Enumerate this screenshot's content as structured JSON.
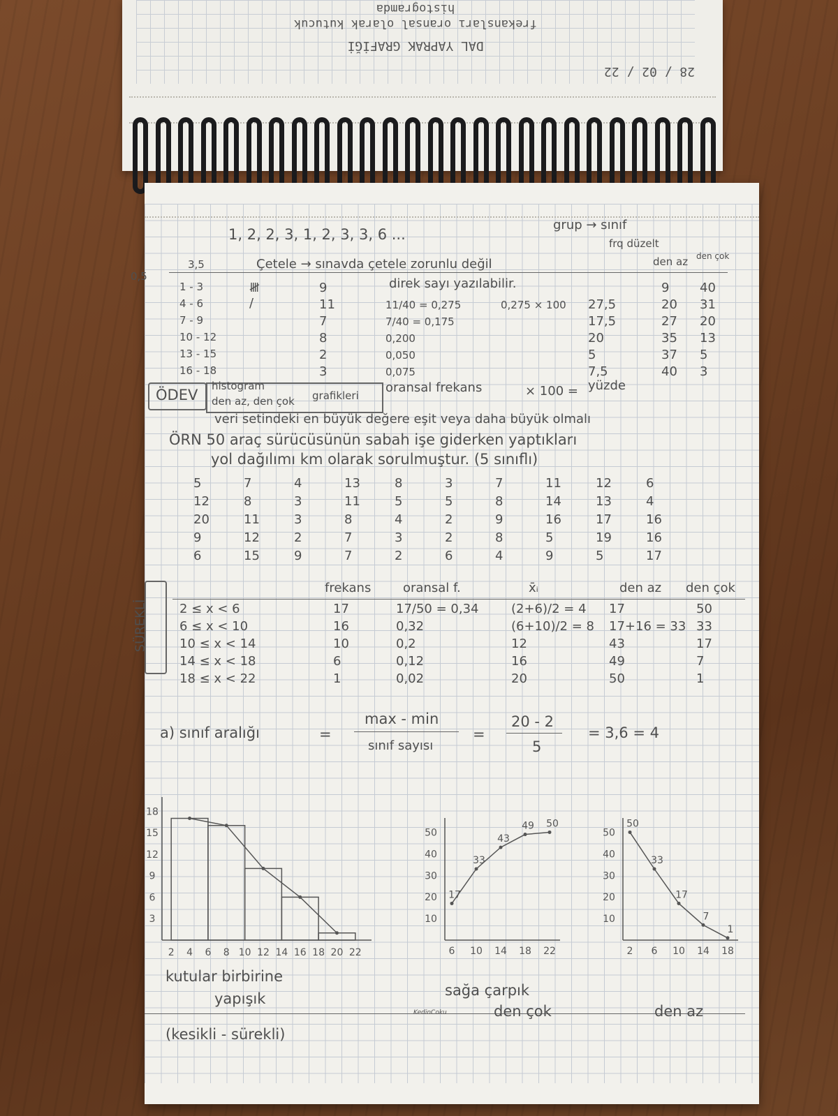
{
  "top_page": {
    "line1": "histogramda",
    "line2": "frekansları oransal olarak kutucuk",
    "line3": "DAL YAPRAK GRAFİĞİ",
    "date": "28 / 02 / 22"
  },
  "header": {
    "sequence": "1, 2, 2, 3, 1, 2, 3, 3, 6 ...",
    "group_note": "grup → sınıf",
    "freq_note": "frq düzelt",
    "lower_bound": "0,5",
    "interval_head": "3,5",
    "cetele_note": "Çetele → sınavda çetele zorunlu değil",
    "direct_note": "direk sayı yazılabilir.",
    "den_az": "den az",
    "den_cok": "den çok"
  },
  "table1": {
    "rows": [
      {
        "cls": "1 - 3",
        "tally": "𝍸",
        "freq": "9",
        "rel": "",
        "pct": "",
        "az": "9",
        "cok": "40"
      },
      {
        "cls": "4 - 6",
        "tally": "/",
        "freq": "11",
        "rel": "11/40 = 0,275",
        "extra": "0,275 × 100",
        "pct": "27,5",
        "az": "20",
        "cok": "31"
      },
      {
        "cls": "7 - 9",
        "tally": "",
        "freq": "7",
        "rel": "7/40 = 0,175",
        "pct": "17,5",
        "az": "27",
        "cok": "20"
      },
      {
        "cls": "10 - 12",
        "tally": "",
        "freq": "8",
        "rel": "0,200",
        "pct": "20",
        "az": "35",
        "cok": "13"
      },
      {
        "cls": "13 - 15",
        "tally": "",
        "freq": "2",
        "rel": "0,050",
        "pct": "5",
        "az": "37",
        "cok": "5"
      },
      {
        "cls": "16 - 18",
        "tally": "",
        "freq": "3",
        "rel": "0,075",
        "pct": "7,5",
        "az": "40",
        "cok": "3"
      }
    ]
  },
  "homework": {
    "label": "ÖDEV",
    "line1": "histogram",
    "line2": "den az, den çok",
    "line3": "grafikleri",
    "rel_freq": "oransal frekans",
    "times100": "× 100 =",
    "yuzde": "yüzde",
    "note": "veri setindeki en büyük değere eşit veya daha büyük olmalı"
  },
  "problem": {
    "line1": "ÖRN  50 araç sürücüsünün sabah işe giderken yaptıkları",
    "line2": "yol dağılımı km olarak sorulmuştur. (5 sınıflı)",
    "grid": [
      [
        "5",
        "7",
        "4",
        "13",
        "8",
        "3",
        "7",
        "11",
        "12",
        "6"
      ],
      [
        "12",
        "8",
        "3",
        "11",
        "5",
        "5",
        "8",
        "14",
        "13",
        "4"
      ],
      [
        "20",
        "11",
        "3",
        "8",
        "4",
        "2",
        "9",
        "16",
        "17",
        "16"
      ],
      [
        "9",
        "12",
        "2",
        "7",
        "3",
        "2",
        "8",
        "5",
        "19",
        "16"
      ],
      [
        "6",
        "15",
        "9",
        "7",
        "2",
        "6",
        "4",
        "9",
        "5",
        "17"
      ]
    ]
  },
  "table2": {
    "side_label": "SÜREKLİ",
    "headers": [
      "frekans",
      "oransal f.",
      "x̄ᵢ",
      "den az",
      "den çok"
    ],
    "rows": [
      {
        "cls": "2 ≤ x < 6",
        "freq": "17",
        "rel": "17/50 = 0,34",
        "mid": "(2+6)/2 = 4",
        "az": "17",
        "cok": "50"
      },
      {
        "cls": "6 ≤ x < 10",
        "freq": "16",
        "rel": "0,32",
        "mid": "(6+10)/2 = 8",
        "az": "17+16 = 33",
        "cok": "33"
      },
      {
        "cls": "10 ≤ x < 14",
        "freq": "10",
        "rel": "0,2",
        "mid": "12",
        "az": "43",
        "cok": "17"
      },
      {
        "cls": "14 ≤ x < 18",
        "freq": "6",
        "rel": "0,12",
        "mid": "16",
        "az": "49",
        "cok": "7"
      },
      {
        "cls": "18 ≤ x < 22",
        "freq": "1",
        "rel": "0,02",
        "mid": "20",
        "az": "50",
        "cok": "1"
      }
    ]
  },
  "formula": {
    "label": "a) sınıf aralığı",
    "eq": "=",
    "numerator": "max - min",
    "denominator": "sınıf sayısı",
    "eq2": "=",
    "num2": "20 - 2",
    "den2": "5",
    "result": "= 3,6 = 4"
  },
  "chart_data": [
    {
      "type": "bar",
      "categories": [
        "2-6",
        "6-10",
        "10-14",
        "14-18",
        "18-22"
      ],
      "values": [
        17,
        16,
        10,
        6,
        1
      ],
      "xticks": [
        "2",
        "4",
        "6",
        "8",
        "10",
        "12",
        "14",
        "16",
        "18",
        "20",
        "22"
      ],
      "yticks": [
        "3",
        "6",
        "9",
        "12",
        "15",
        "18"
      ],
      "ylim": [
        0,
        19
      ]
    },
    {
      "type": "line",
      "x": [
        6,
        10,
        14,
        18,
        22
      ],
      "y": [
        17,
        33,
        43,
        49,
        50
      ],
      "labels": [
        "17",
        "33",
        "43",
        "49",
        "50"
      ],
      "xticks": [
        "6",
        "10",
        "14",
        "18",
        "22"
      ],
      "yticks": [
        "10",
        "20",
        "30",
        "40",
        "50"
      ],
      "ylim": [
        0,
        55
      ]
    },
    {
      "type": "line",
      "x": [
        2,
        6,
        10,
        14,
        18
      ],
      "y": [
        50,
        33,
        17,
        7,
        1
      ],
      "labels": [
        "50",
        "33",
        "17",
        "7",
        "1"
      ],
      "xticks": [
        "2",
        "6",
        "10",
        "14",
        "18"
      ],
      "yticks": [
        "10",
        "20",
        "30",
        "40",
        "50"
      ],
      "ylim": [
        0,
        55
      ]
    }
  ],
  "captions": {
    "kutular": "kutular birbirine",
    "yapisik": "yapışık",
    "saga": "sağa çarpık",
    "den_cok": "den çok",
    "den_az": "den az",
    "brand": "KedinCoku",
    "kesikli": "(kesikli - sürekli)"
  }
}
